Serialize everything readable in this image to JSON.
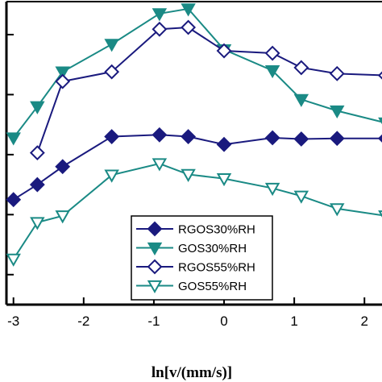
{
  "chart_data": {
    "type": "line",
    "xlabel": "ln[v/(mm/s)]",
    "ylabel": "",
    "title": "",
    "xlim": [
      -3.1,
      2.25
    ],
    "ylim": [
      0,
      5.05
    ],
    "x_ticks": [
      -3,
      -2,
      -1,
      0,
      1,
      2
    ],
    "x_tick_labels": [
      "-3",
      "-2",
      "-1",
      "0",
      "1",
      "2"
    ],
    "y_ticks": [
      0.5,
      1.5,
      2.5,
      3.5,
      4.5
    ],
    "legend": {
      "position": "lower-center"
    },
    "series": [
      {
        "name": "RGOS30%RH",
        "color": "#1a1a7e",
        "marker": "diamond-filled",
        "x": [
          -3.0,
          -2.66,
          -2.3,
          -1.6,
          -0.92,
          -0.51,
          0.0,
          0.69,
          1.1,
          1.61,
          2.3
        ],
        "y": [
          1.75,
          2.0,
          2.3,
          2.8,
          2.83,
          2.8,
          2.67,
          2.78,
          2.76,
          2.77,
          2.77
        ]
      },
      {
        "name": "GOS30%RH",
        "color": "#1a8a85",
        "marker": "triangle-down-filled",
        "x": [
          -3.0,
          -2.66,
          -2.3,
          -1.6,
          -0.92,
          -0.51,
          0.0,
          0.69,
          1.1,
          1.61,
          2.3
        ],
        "y": [
          2.78,
          3.3,
          3.88,
          4.34,
          4.85,
          4.93,
          4.25,
          3.9,
          3.42,
          3.23,
          3.03
        ]
      },
      {
        "name": "RGOS55%RH",
        "color": "#1a1a7e",
        "marker": "diamond-open",
        "x": [
          -2.66,
          -2.3,
          -1.6,
          -0.92,
          -0.51,
          0.0,
          0.69,
          1.1,
          1.61,
          2.3
        ],
        "y": [
          2.53,
          3.72,
          3.88,
          4.59,
          4.62,
          4.23,
          4.19,
          3.95,
          3.85,
          3.82
        ]
      },
      {
        "name": "GOS55%RH",
        "color": "#1a8a85",
        "marker": "triangle-down-open",
        "x": [
          -3.0,
          -2.66,
          -2.3,
          -1.6,
          -0.92,
          -0.51,
          0.0,
          0.69,
          1.1,
          1.61,
          2.3
        ],
        "y": [
          0.76,
          1.37,
          1.48,
          2.16,
          2.35,
          2.17,
          2.1,
          1.94,
          1.81,
          1.6,
          1.48
        ]
      }
    ]
  }
}
